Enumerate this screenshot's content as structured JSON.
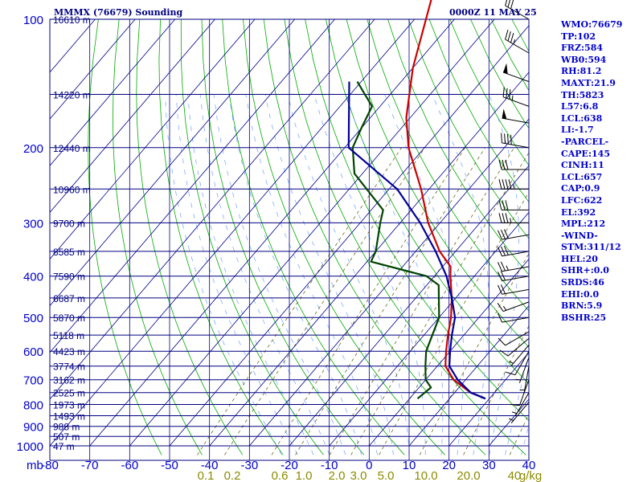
{
  "header": {
    "station": "MMMX (76679) Sounding",
    "time": "0000Z 11 MAY 25"
  },
  "stats": [
    "WMO:76679",
    "TP:102",
    "FRZ:584",
    "WB0:594",
    "RH:81.2",
    "MAXT:21.9",
    "TH:5823",
    "L57:6.8",
    "LCL:638",
    "LI:-1.7",
    "-PARCEL-",
    "CAPE:145",
    "CINH:11",
    "LCL:657",
    "CAP:0.9",
    "LFC:622",
    "EL:392",
    "MPL:212",
    "-WIND-",
    "STM:311/12",
    "HEL:20",
    "SHR+:0.0",
    "SRDS:46",
    "EHI:0.0",
    "BRN:5.9",
    "BSHR:25"
  ],
  "chart_data": {
    "type": "line",
    "title": "MMMX (76679) Sounding",
    "subtitle": "0000Z 11 MAY 25",
    "x_axis": {
      "label": "",
      "ticks": [
        -80,
        -70,
        -60,
        -50,
        -40,
        -30,
        -20,
        -10,
        0,
        10,
        20,
        30,
        40
      ],
      "range": [
        -80,
        40
      ]
    },
    "y_axis": {
      "label": "mb",
      "scale": "log",
      "ticks": [
        100,
        200,
        300,
        400,
        500,
        600,
        700,
        800,
        900,
        1000
      ],
      "range": [
        1000,
        100
      ]
    },
    "height_labels": [
      {
        "p": 100,
        "label": "16610 m"
      },
      {
        "p": 150,
        "label": "14220 m"
      },
      {
        "p": 200,
        "label": "12440 m"
      },
      {
        "p": 250,
        "label": "10960 m"
      },
      {
        "p": 300,
        "label": "9700 m"
      },
      {
        "p": 350,
        "label": "8585 m"
      },
      {
        "p": 400,
        "label": "7590 m"
      },
      {
        "p": 450,
        "label": "6687 m"
      },
      {
        "p": 500,
        "label": "5870 m"
      },
      {
        "p": 550,
        "label": "5118 m"
      },
      {
        "p": 600,
        "label": "4423 m"
      },
      {
        "p": 650,
        "label": "3774 m"
      },
      {
        "p": 700,
        "label": "3162 m"
      },
      {
        "p": 750,
        "label": "2525 m"
      },
      {
        "p": 800,
        "label": "1973 m"
      },
      {
        "p": 850,
        "label": "1493 m"
      },
      {
        "p": 900,
        "label": "988 m"
      },
      {
        "p": 950,
        "label": "507 m"
      },
      {
        "p": 1000,
        "label": "47 m"
      }
    ],
    "mixing_ratio_labels": [
      "0.1",
      "0.2",
      "0.6",
      "1.0",
      "2.0",
      "3.0",
      "5.0",
      "10.0",
      "20.0",
      "40",
      "g/kg"
    ],
    "series": [
      {
        "role": "temperature",
        "color": "#cc0000",
        "points": [
          [
            90,
            -80
          ],
          [
            130,
            -70
          ],
          [
            170,
            -61
          ],
          [
            200,
            -54
          ],
          [
            250,
            -42
          ],
          [
            300,
            -33
          ],
          [
            350,
            -24
          ],
          [
            380,
            -18
          ],
          [
            400,
            -16
          ],
          [
            450,
            -11
          ],
          [
            500,
            -7
          ],
          [
            550,
            -4
          ],
          [
            600,
            -1
          ],
          [
            650,
            2
          ],
          [
            700,
            7
          ],
          [
            750,
            14
          ],
          [
            775,
            19
          ]
        ]
      },
      {
        "role": "dewpoint",
        "color": "#004400",
        "points": [
          [
            140,
            -81
          ],
          [
            160,
            -72
          ],
          [
            180,
            -70
          ],
          [
            200,
            -68
          ],
          [
            230,
            -62
          ],
          [
            280,
            -47
          ],
          [
            300,
            -45
          ],
          [
            350,
            -40
          ],
          [
            370,
            -39
          ],
          [
            400,
            -22
          ],
          [
            420,
            -17
          ],
          [
            500,
            -10
          ],
          [
            600,
            -6
          ],
          [
            650,
            -3
          ],
          [
            700,
            0
          ],
          [
            730,
            3
          ],
          [
            775,
            2
          ]
        ]
      },
      {
        "role": "parcel",
        "color": "#000099",
        "points": [
          [
            140,
            -83
          ],
          [
            200,
            -69
          ],
          [
            250,
            -48
          ],
          [
            300,
            -35
          ],
          [
            350,
            -25
          ],
          [
            400,
            -17
          ],
          [
            450,
            -11
          ],
          [
            500,
            -6
          ],
          [
            550,
            -3
          ],
          [
            600,
            0
          ],
          [
            650,
            3
          ],
          [
            700,
            8
          ],
          [
            750,
            14
          ],
          [
            775,
            19
          ]
        ]
      }
    ],
    "wind_barbs": [
      {
        "p": 100,
        "dir": 300,
        "spd": 30
      },
      {
        "p": 120,
        "dir": 300,
        "spd": 35
      },
      {
        "p": 140,
        "dir": 290,
        "spd": 50
      },
      {
        "p": 160,
        "dir": 290,
        "spd": 35
      },
      {
        "p": 175,
        "dir": 280,
        "spd": 50
      },
      {
        "p": 200,
        "dir": 280,
        "spd": 40
      },
      {
        "p": 225,
        "dir": 270,
        "spd": 30
      },
      {
        "p": 250,
        "dir": 270,
        "spd": 45
      },
      {
        "p": 280,
        "dir": 270,
        "spd": 30
      },
      {
        "p": 300,
        "dir": 270,
        "spd": 35
      },
      {
        "p": 320,
        "dir": 260,
        "spd": 30
      },
      {
        "p": 350,
        "dir": 260,
        "spd": 30
      },
      {
        "p": 380,
        "dir": 260,
        "spd": 25
      },
      {
        "p": 400,
        "dir": 260,
        "spd": 20
      },
      {
        "p": 430,
        "dir": 260,
        "spd": 20
      },
      {
        "p": 460,
        "dir": 250,
        "spd": 15
      },
      {
        "p": 500,
        "dir": 260,
        "spd": 10
      },
      {
        "p": 540,
        "dir": 240,
        "spd": 10
      },
      {
        "p": 560,
        "dir": 230,
        "spd": 10
      },
      {
        "p": 580,
        "dir": 220,
        "spd": 5
      },
      {
        "p": 600,
        "dir": 210,
        "spd": 10
      },
      {
        "p": 620,
        "dir": 200,
        "spd": 5
      },
      {
        "p": 650,
        "dir": 190,
        "spd": 5
      },
      {
        "p": 700,
        "dir": 200,
        "spd": 10
      },
      {
        "p": 750,
        "dir": 210,
        "spd": 5
      },
      {
        "p": 790,
        "dir": 220,
        "spd": 5
      }
    ],
    "colors": {
      "isobar": "#000080",
      "isotherm": "#00008b",
      "dry_adiabat": "#00aa00",
      "moist_adiabat": "#70a0ff",
      "mixing_ratio": "#555500",
      "axis_text": "#0000cc",
      "mixing_text": "#8b8b00",
      "barb": "#000000"
    }
  }
}
